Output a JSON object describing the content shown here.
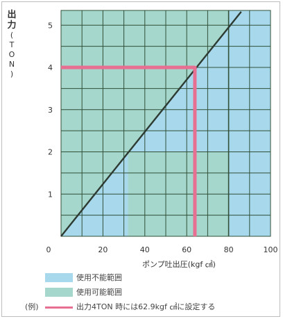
{
  "chart_data": {
    "type": "line",
    "title": "",
    "xlabel": "ポンプ吐出圧(kgf ㎠)",
    "ylabel": "出力(TON)",
    "xlim": [
      0,
      100
    ],
    "ylim": [
      0,
      5.35
    ],
    "xticks": [
      "0",
      "20",
      "40",
      "60",
      "80",
      "100"
    ],
    "yticks": [
      "1",
      "2",
      "3",
      "4",
      "5"
    ],
    "grid": true,
    "series": [
      {
        "x": [
          0,
          86
        ],
        "y": [
          0,
          5.32
        ]
      }
    ],
    "regions": [
      {
        "label": "使用不能範囲",
        "color": "#a8d8ec"
      },
      {
        "label": "使用可能範囲",
        "color": "#a6d7cc"
      }
    ],
    "example": {
      "x": 62.9,
      "y": 4,
      "color": "#e76f92"
    }
  },
  "legend": {
    "unusable_label": "使用不能範囲",
    "usable_label": "使用可能範囲",
    "example_prefix": "(例)",
    "example_label": "出力4TON 時には62.9kgf ㎠に設定する"
  },
  "ylabel_parts": {
    "main": "出力",
    "open": "(",
    "unit": "TON",
    "close": ")"
  },
  "colors": {
    "unusable": "#a8d8ec",
    "usable": "#a6d7cc",
    "example": "#e76f92",
    "grid": "#2f4f37",
    "line": "#2e3b32"
  }
}
